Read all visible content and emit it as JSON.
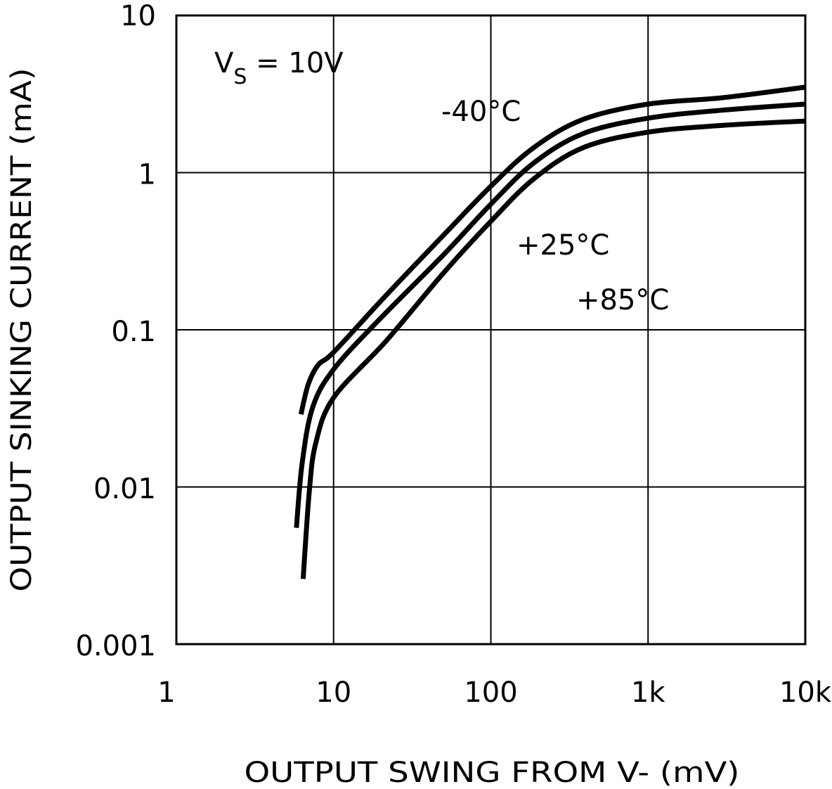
{
  "chart_data": {
    "type": "line",
    "title": "",
    "xlabel": "OUTPUT SWING FROM V- (mV)",
    "ylabel": "OUTPUT SINKING CURRENT (mA)",
    "x_scale": "log",
    "y_scale": "log",
    "xlim": [
      1,
      10000
    ],
    "ylim": [
      0.001,
      10
    ],
    "grid": true,
    "x_ticks": [
      1,
      10,
      100,
      1000,
      10000
    ],
    "x_tick_labels": [
      "1",
      "10",
      "100",
      "1k",
      "10k"
    ],
    "y_ticks": [
      0.001,
      0.01,
      0.1,
      1,
      10
    ],
    "y_tick_labels": [
      "0.001",
      "0.01",
      "0.1",
      "1",
      "10"
    ],
    "annotation": {
      "main": "V",
      "sub": "S",
      "rest": " = 10V"
    },
    "line_color": "#000000",
    "series": [
      {
        "name": "-40°C",
        "points": [
          [
            6.2,
            0.029
          ],
          [
            6.9,
            0.045
          ],
          [
            8,
            0.06
          ],
          [
            10,
            0.072
          ],
          [
            21.6,
            0.166
          ],
          [
            50,
            0.4
          ],
          [
            100,
            0.82
          ],
          [
            187,
            1.44
          ],
          [
            385,
            2.18
          ],
          [
            1000,
            2.73
          ],
          [
            3000,
            3.0
          ],
          [
            10000,
            3.5
          ]
        ]
      },
      {
        "name": "+25°C",
        "points": [
          [
            5.8,
            0.0055
          ],
          [
            6.3,
            0.014
          ],
          [
            7.35,
            0.032
          ],
          [
            10,
            0.056
          ],
          [
            19.5,
            0.116
          ],
          [
            50,
            0.3
          ],
          [
            100,
            0.63
          ],
          [
            187,
            1.15
          ],
          [
            385,
            1.77
          ],
          [
            1000,
            2.22
          ],
          [
            3000,
            2.5
          ],
          [
            10000,
            2.73
          ]
        ]
      },
      {
        "name": "+85°C",
        "points": [
          [
            6.4,
            0.0026
          ],
          [
            7.0,
            0.0093
          ],
          [
            7.7,
            0.019
          ],
          [
            10,
            0.037
          ],
          [
            21.6,
            0.085
          ],
          [
            50,
            0.23
          ],
          [
            100,
            0.49
          ],
          [
            187,
            0.91
          ],
          [
            385,
            1.44
          ],
          [
            1000,
            1.81
          ],
          [
            3000,
            2.0
          ],
          [
            10000,
            2.13
          ]
        ]
      }
    ],
    "series_label_positions": "-40°C above top curve, +25°C and +85°C below curves"
  }
}
